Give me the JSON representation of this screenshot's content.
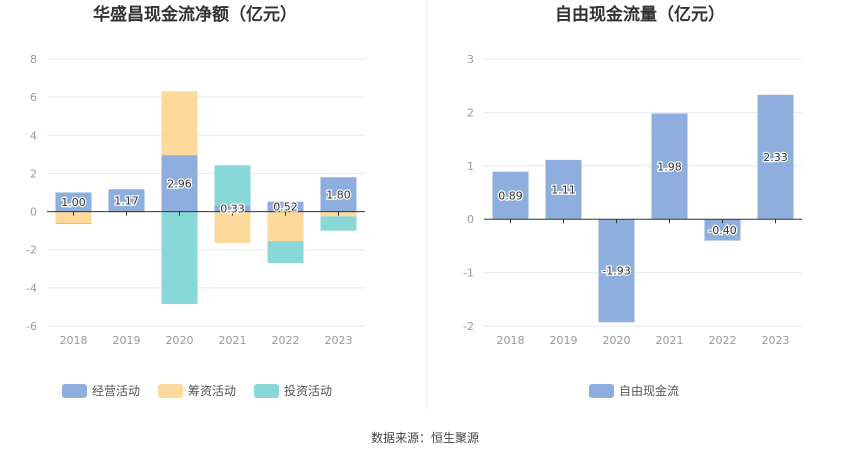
{
  "source_text": "数据来源：恒生聚源",
  "colors": {
    "operating": "#8eaedd",
    "financing": "#fdd99b",
    "investing": "#88d8d8",
    "free_cash_flow": "#8eaedd",
    "grid": "#e6e9f0",
    "axis": "#333333",
    "tick_text": "#999999",
    "title_text": "#333333",
    "label_text": "#333333"
  },
  "chart_data": [
    {
      "type": "bar",
      "stacked": true,
      "title": "华盛昌现金流净额（亿元）",
      "categories": [
        "2018",
        "2019",
        "2020",
        "2021",
        "2022",
        "2023"
      ],
      "ylim": [
        -6,
        8
      ],
      "yticks": [
        "8",
        "6",
        "4",
        "2",
        "0",
        "-2",
        "-4",
        "-6"
      ],
      "legend_position": "bottom",
      "grid": true,
      "series": [
        {
          "name": "经营活动",
          "key": "operating",
          "values": [
            1.0,
            1.17,
            2.96,
            0.33,
            0.52,
            1.8
          ],
          "labels": [
            "1.00",
            "1.17",
            "2.96",
            "0.33",
            "0.52",
            "1.80"
          ]
        },
        {
          "name": "筹资活动",
          "key": "financing",
          "values": [
            -0.6,
            -0.05,
            3.35,
            -1.65,
            -1.55,
            -0.25
          ]
        },
        {
          "name": "投资活动",
          "key": "investing",
          "values": [
            -0.05,
            0.0,
            -4.85,
            2.1,
            -1.15,
            -0.75
          ]
        }
      ]
    },
    {
      "type": "bar",
      "title": "自由现金流量（亿元）",
      "categories": [
        "2018",
        "2019",
        "2020",
        "2021",
        "2022",
        "2023"
      ],
      "ylim": [
        -2,
        3
      ],
      "yticks": [
        "3",
        "2",
        "1",
        "0",
        "-1",
        "-2"
      ],
      "legend_position": "bottom",
      "grid": true,
      "series": [
        {
          "name": "自由现金流",
          "key": "free_cash_flow",
          "values": [
            0.89,
            1.11,
            -1.93,
            1.98,
            -0.4,
            2.33
          ],
          "labels": [
            "0.89",
            "1.11",
            "-1.93",
            "1.98",
            "-0.40",
            "2.33"
          ]
        }
      ]
    }
  ]
}
